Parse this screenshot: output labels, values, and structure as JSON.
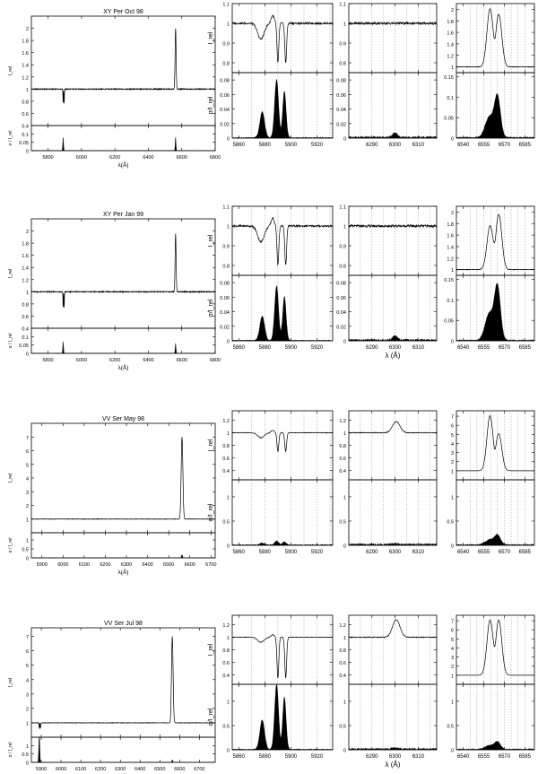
{
  "figure": {
    "rows": [
      {
        "title": "XY Per Oct 98",
        "overview": {
          "xlim": [
            5700,
            6800
          ],
          "xticks": [
            5800,
            6000,
            6200,
            6400,
            6600,
            6800
          ],
          "top_ylim": [
            0.4,
            2.2
          ],
          "top_yticks": [
            0.4,
            0.6,
            0.8,
            1,
            1.2,
            1.4,
            1.6,
            1.8,
            2
          ],
          "bot_ylim": [
            0,
            0.15
          ],
          "bot_yticks": [
            0,
            0.05,
            0.1
          ],
          "ylabel_top": "I_rel",
          "ylabel_bot": "σ / I_rel",
          "xlabel": "λ(Å)"
        },
        "zoom_top_ylims": [
          [
            0.75,
            1.1
          ],
          [
            0.75,
            1.1
          ],
          [
            0.9,
            2.1
          ]
        ],
        "zoom_top_yticks": [
          [
            0.8,
            0.9,
            1,
            1.1
          ],
          [
            0.8,
            0.9,
            1,
            1.1
          ],
          [
            1,
            1.2,
            1.4,
            1.6,
            1.8,
            2
          ]
        ],
        "zoom_bot_ylims": [
          [
            0,
            0.09
          ],
          [
            0,
            0.09
          ],
          [
            0,
            0.16
          ]
        ],
        "zoom_bot_yticks": [
          [
            0,
            0.02,
            0.04,
            0.06,
            0.08
          ],
          [
            0,
            0.02,
            0.04,
            0.06,
            0.08
          ],
          [
            0,
            0.05,
            0.1,
            0.15
          ]
        ],
        "ylabel_top": "I_rel",
        "ylabel_bot": "σ/I_rel",
        "show_xlabel": false
      },
      {
        "title": "XY Per Jan 99",
        "overview": {
          "xlim": [
            5700,
            6800
          ],
          "xticks": [
            5800,
            6000,
            6200,
            6400,
            6600,
            6800
          ],
          "top_ylim": [
            0.4,
            2.2
          ],
          "top_yticks": [
            0.4,
            0.6,
            0.8,
            1,
            1.2,
            1.4,
            1.6,
            1.8,
            2
          ],
          "bot_ylim": [
            0,
            0.15
          ],
          "bot_yticks": [
            0,
            0.05,
            0.1
          ],
          "ylabel_top": "I_rel",
          "ylabel_bot": "σ / I_rel",
          "xlabel": "λ(Å)"
        },
        "zoom_top_ylims": [
          [
            0.75,
            1.1
          ],
          [
            0.75,
            1.1
          ],
          [
            0.9,
            2.1
          ]
        ],
        "zoom_top_yticks": [
          [
            0.8,
            0.9,
            1,
            1.1
          ],
          [
            0.8,
            0.9,
            1,
            1.1
          ],
          [
            1,
            1.2,
            1.4,
            1.6,
            1.8,
            2
          ]
        ],
        "zoom_bot_ylims": [
          [
            0,
            0.09
          ],
          [
            0,
            0.09
          ],
          [
            0,
            0.16
          ]
        ],
        "zoom_bot_yticks": [
          [
            0,
            0.02,
            0.04,
            0.06,
            0.08
          ],
          [
            0,
            0.02,
            0.04,
            0.06,
            0.08
          ],
          [
            0,
            0.05,
            0.1,
            0.15
          ]
        ],
        "ylabel_top": "I_rel",
        "ylabel_bot": "σ/I_rel",
        "show_xlabel": true
      },
      {
        "title": "VV Ser May 98",
        "overview": {
          "xlim": [
            5850,
            6720
          ],
          "xticks": [
            5900,
            6000,
            6100,
            6200,
            6300,
            6400,
            6500,
            6600,
            6700
          ],
          "top_ylim": [
            0,
            8
          ],
          "top_yticks": [
            1,
            2,
            3,
            4,
            5,
            6,
            7
          ],
          "bot_ylim": [
            0,
            1.4
          ],
          "bot_yticks": [
            0,
            0.5,
            1
          ],
          "ylabel_top": "I_rel",
          "ylabel_bot": "σ / I_rel",
          "xlabel": "λ(Å)"
        },
        "zoom_top_ylims": [
          [
            0.25,
            1.35
          ],
          [
            0.25,
            1.35
          ],
          [
            0,
            7.6
          ]
        ],
        "zoom_top_yticks": [
          [
            0.4,
            0.6,
            0.8,
            1,
            1.2
          ],
          [
            0.4,
            0.6,
            0.8,
            1,
            1.2
          ],
          [
            1,
            2,
            3,
            4,
            5,
            6,
            7
          ]
        ],
        "zoom_bot_ylims": [
          [
            0,
            1.35
          ],
          [
            0,
            1.35
          ],
          [
            0,
            1.35
          ]
        ],
        "zoom_bot_yticks": [
          [
            0,
            0.5,
            1
          ],
          [
            0,
            0.5,
            1
          ],
          [
            0,
            0.5,
            1
          ]
        ],
        "ylabel_top": "I_rel",
        "ylabel_bot": "σ/I_rel",
        "show_xlabel": false
      },
      {
        "title": "VV Ser Jul 98",
        "overview": {
          "xlim": [
            5850,
            6780
          ],
          "xticks": [
            5900,
            6000,
            6100,
            6200,
            6300,
            6400,
            6500,
            6600,
            6700
          ],
          "top_ylim": [
            0,
            7.6
          ],
          "top_yticks": [
            1,
            2,
            3,
            4,
            5,
            6,
            7
          ],
          "bot_ylim": [
            0,
            1.5
          ],
          "bot_yticks": [
            0,
            0.5,
            1
          ],
          "ylabel_top": "I_rel",
          "ylabel_bot": "σ / I_rel",
          "xlabel": "λ(Å)"
        },
        "zoom_top_ylims": [
          [
            0.25,
            1.35
          ],
          [
            0.25,
            1.35
          ],
          [
            0,
            7.6
          ]
        ],
        "zoom_top_yticks": [
          [
            0.4,
            0.6,
            0.8,
            1,
            1.2
          ],
          [
            0.4,
            0.6,
            0.8,
            1,
            1.2
          ],
          [
            1,
            2,
            3,
            4,
            5,
            6,
            7
          ]
        ],
        "zoom_bot_ylims": [
          [
            0,
            1.35
          ],
          [
            0,
            1.35
          ],
          [
            0,
            1.35
          ]
        ],
        "zoom_bot_yticks": [
          [
            0,
            0.5,
            1
          ],
          [
            0,
            0.5,
            1
          ],
          [
            0,
            0.5,
            1
          ]
        ],
        "ylabel_top": "I_rel",
        "ylabel_bot": "σ/I_rel",
        "show_xlabel": true
      }
    ],
    "zoom_columns": [
      {
        "xlim": [
          5855,
          5932
        ],
        "xticks": [
          5860,
          5880,
          5900,
          5920
        ],
        "dotted": [
          5870,
          5880,
          5890,
          5900,
          5910,
          5920,
          5930
        ]
      },
      {
        "xlim": [
          6280,
          6318
        ],
        "xticks": [
          6290,
          6300,
          6310
        ],
        "dotted": [
          6285,
          6290,
          6295,
          6300,
          6305,
          6310,
          6315
        ]
      },
      {
        "xlim": [
          6535,
          6592
        ],
        "xticks": [
          6540,
          6555,
          6570,
          6585
        ],
        "dotted": [
          6545,
          6550,
          6555,
          6560,
          6565,
          6570,
          6575,
          6580,
          6585
        ]
      }
    ],
    "zoom_xlabel": "λ (Å)"
  },
  "chart_data": [
    {
      "type": "line",
      "title": "XY Per Oct 98",
      "xlabel": "λ(Å)",
      "ylabel": "I_rel",
      "xlim": [
        5700,
        6800
      ],
      "ylim": [
        0.4,
        2.2
      ],
      "continuum": 1.0,
      "features": [
        {
          "name": "Na D absorption",
          "x": [
            5890,
            5896
          ],
          "y_min": 0.75
        },
        {
          "name": "Hα emission",
          "x": 6563,
          "y_peak": 2.0
        }
      ],
      "sigma_ylim": [
        0,
        0.15
      ],
      "sigma_peaks": [
        {
          "x": 5890,
          "y": 0.08
        },
        {
          "x": 6563,
          "y": 0.08
        }
      ]
    },
    {
      "type": "line",
      "title": "XY Per Jan 99",
      "xlabel": "λ(Å)",
      "ylabel": "I_rel",
      "xlim": [
        5700,
        6800
      ],
      "ylim": [
        0.4,
        2.2
      ],
      "continuum": 1.0,
      "features": [
        {
          "name": "Na D absorption",
          "x": [
            5890,
            5896
          ],
          "y_min": 0.72
        },
        {
          "name": "Hα emission",
          "x": 6563,
          "y_peak": 1.95
        }
      ],
      "sigma_ylim": [
        0,
        0.15
      ],
      "sigma_peaks": [
        {
          "x": 5890,
          "y": 0.07
        },
        {
          "x": 6563,
          "y": 0.06
        }
      ]
    },
    {
      "type": "line",
      "title": "VV Ser May 98",
      "xlabel": "λ(Å)",
      "ylabel": "I_rel",
      "xlim": [
        5850,
        6720
      ],
      "ylim": [
        0,
        8
      ],
      "continuum": 1.0,
      "features": [
        {
          "name": "Hα emission",
          "x": 6563,
          "y_peak": 7.0
        }
      ],
      "sigma_ylim": [
        0,
        1.4
      ],
      "sigma_peaks": [
        {
          "x": 6563,
          "y": 0.12
        }
      ]
    },
    {
      "type": "line",
      "title": "VV Ser Jul 98",
      "xlabel": "λ(Å)",
      "ylabel": "I_rel",
      "xlim": [
        5850,
        6780
      ],
      "ylim": [
        0,
        7.6
      ],
      "continuum": 1.0,
      "features": [
        {
          "name": "Na D absorption",
          "x": [
            5890,
            5896
          ],
          "y_min": 0.6
        },
        {
          "name": "Hα emission",
          "x": 6563,
          "y_peak": 7.0
        }
      ],
      "sigma_ylim": [
        0,
        1.5
      ],
      "sigma_peaks": [
        {
          "x": 5890,
          "y": 1.2
        },
        {
          "x": 6563,
          "y": 0.1
        }
      ]
    },
    {
      "type": "area",
      "title": "zoomed Na D / [O I] 6300 / Hα profiles",
      "xlabel": "λ (Å)",
      "panels_per_row": [
        {
          "row": "XY Per Oct 98",
          "NaD_I_min": 0.8,
          "OI_flat": 1.0,
          "Ha_peaks": [
            2.0,
            1.9
          ],
          "NaD_sigma_max": 0.08,
          "Ha_sigma_max": 0.1
        },
        {
          "row": "XY Per Jan 99",
          "NaD_I_min": 0.8,
          "OI_flat": 1.0,
          "Ha_peaks": [
            1.75,
            1.95
          ],
          "NaD_sigma_max": 0.075,
          "Ha_sigma_max": 0.13
        },
        {
          "row": "VV Ser May 98",
          "NaD_I_min": 0.7,
          "OI_peak": 1.18,
          "Ha_peaks": [
            7.0,
            5.0
          ],
          "NaD_sigma_max": 0.08,
          "Ha_sigma_max": 0.2
        },
        {
          "row": "VV Ser Jul 98",
          "NaD_I_min": 0.35,
          "OI_peak": 1.28,
          "Ha_peaks": [
            7.0,
            7.0
          ],
          "NaD_sigma_max": 1.35,
          "Ha_sigma_max": 0.15
        }
      ]
    }
  ]
}
